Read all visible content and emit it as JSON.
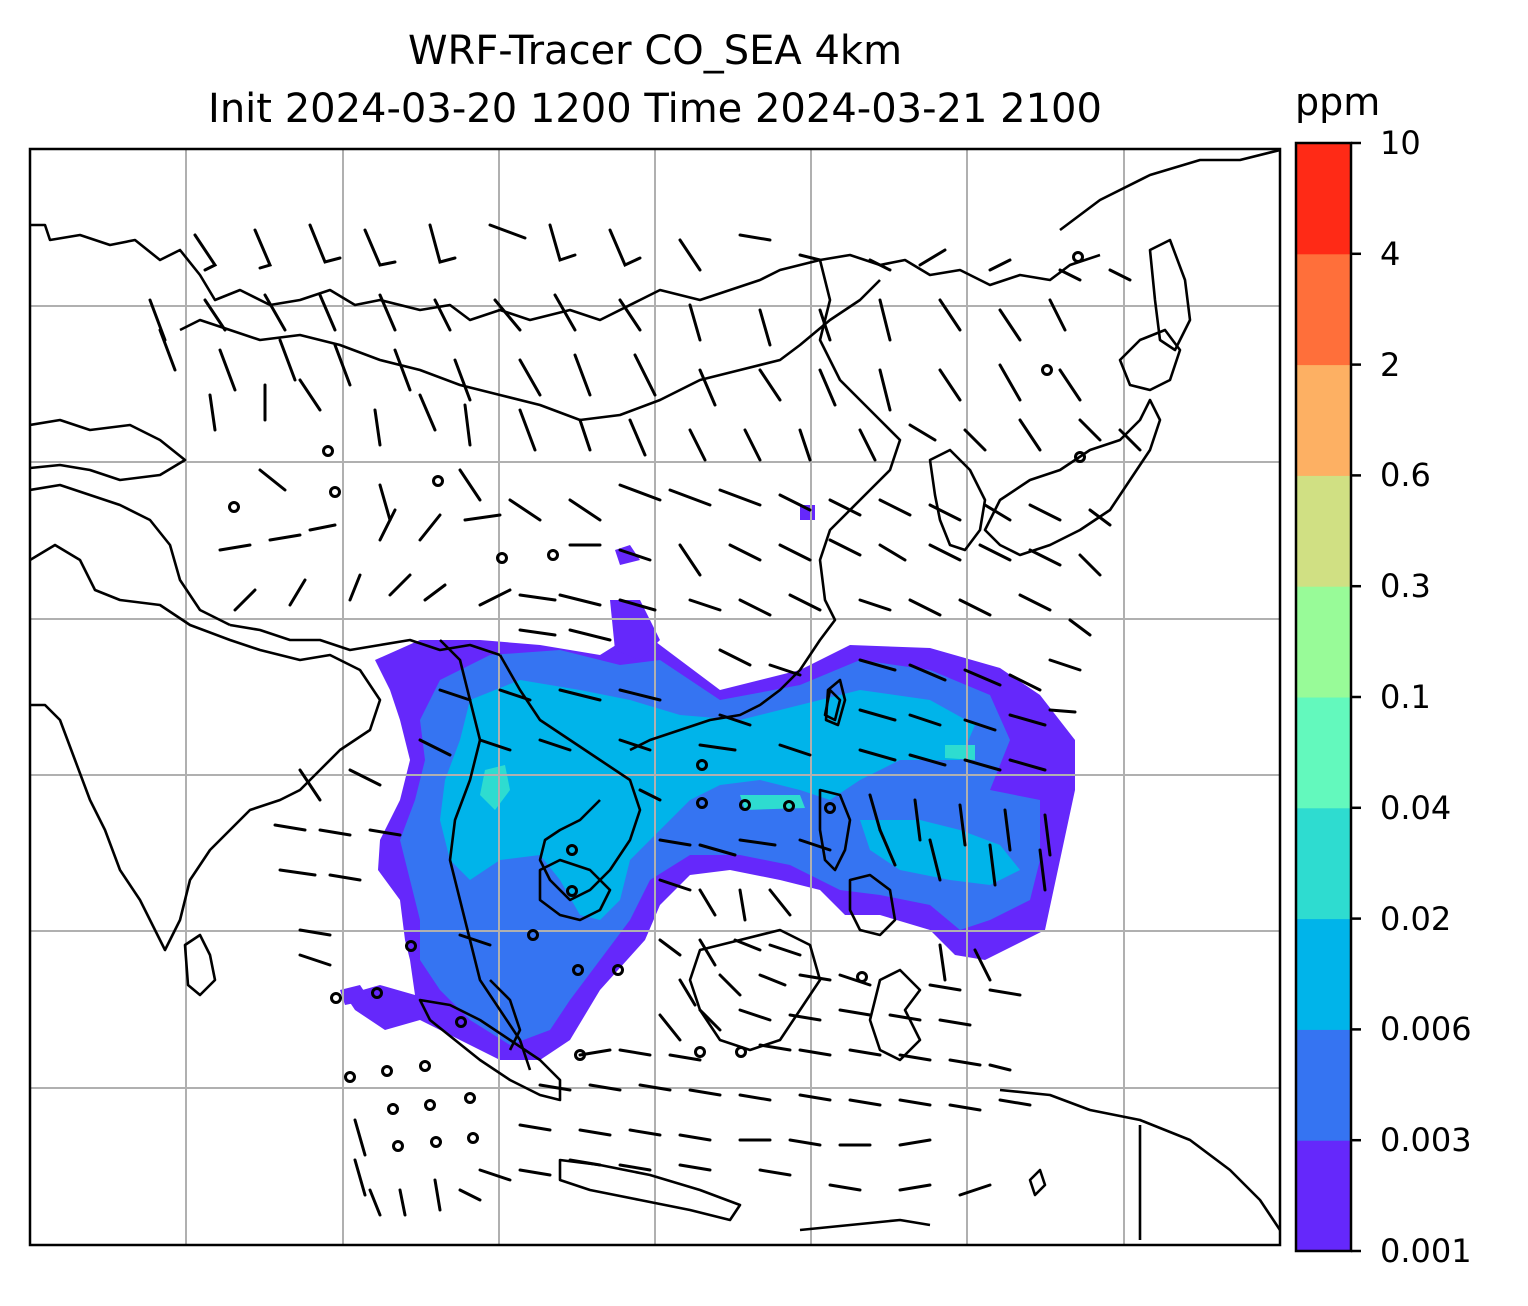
{
  "title": {
    "line1": "WRF-Tracer CO_SEA 4km",
    "line2": "Init 2024-03-20 1200 Time 2024-03-21 2100"
  },
  "colorbar": {
    "unit": "ppm",
    "levels": [
      "0.001",
      "0.003",
      "0.006",
      "0.02",
      "0.04",
      "0.1",
      "0.3",
      "0.6",
      "2",
      "4",
      "10"
    ],
    "colors": [
      "#6528fb",
      "#3574f2",
      "#00b4ea",
      "#2edcd0",
      "#63f9bd",
      "#98fb98",
      "#d0e083",
      "#fdb063",
      "#ff6f3a",
      "#ff2a16"
    ]
  },
  "map": {
    "gridlines": true,
    "plume_colors": {
      "outer": "#6528fb",
      "mid": "#3574f2",
      "inner": "#00b4ea",
      "core": "#2edcd0"
    },
    "wind_barbs": "black",
    "coastline_color": "#000000",
    "grid_color": "#b0b0b0"
  }
}
